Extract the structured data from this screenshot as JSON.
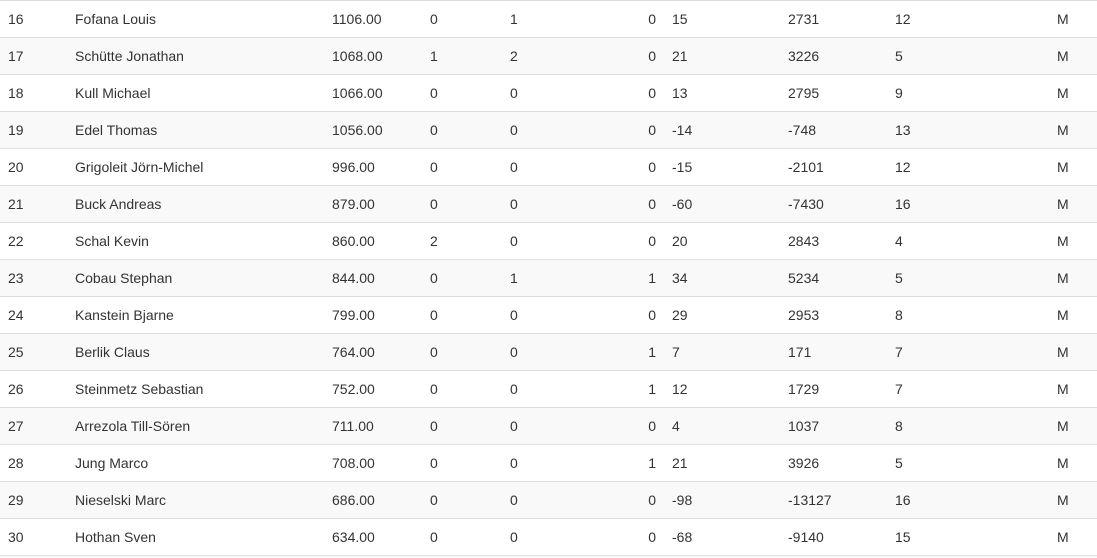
{
  "colors": {
    "background": "#ffffff",
    "stripe": "#f9f9f9",
    "row_border": "#dddddd",
    "text": "#333333"
  },
  "table": {
    "column_keys": [
      "rank",
      "player-name",
      "score",
      "col-4",
      "col-5",
      "col-6",
      "col-7",
      "col-8",
      "col-9",
      "gender"
    ],
    "rows": [
      [
        "16",
        "Fofana Louis",
        "1106.00",
        "0",
        "1",
        "0",
        "15",
        "2731",
        "12",
        "M"
      ],
      [
        "17",
        "Schütte Jonathan",
        "1068.00",
        "1",
        "2",
        "0",
        "21",
        "3226",
        "5",
        "M"
      ],
      [
        "18",
        "Kull Michael",
        "1066.00",
        "0",
        "0",
        "0",
        "13",
        "2795",
        "9",
        "M"
      ],
      [
        "19",
        "Edel Thomas",
        "1056.00",
        "0",
        "0",
        "0",
        "-14",
        "-748",
        "13",
        "M"
      ],
      [
        "20",
        "Grigoleit Jörn-Michel",
        "996.00",
        "0",
        "0",
        "0",
        "-15",
        "-2101",
        "12",
        "M"
      ],
      [
        "21",
        "Buck Andreas",
        "879.00",
        "0",
        "0",
        "0",
        "-60",
        "-7430",
        "16",
        "M"
      ],
      [
        "22",
        "Schal Kevin",
        "860.00",
        "2",
        "0",
        "0",
        "20",
        "2843",
        "4",
        "M"
      ],
      [
        "23",
        "Cobau Stephan",
        "844.00",
        "0",
        "1",
        "1",
        "34",
        "5234",
        "5",
        "M"
      ],
      [
        "24",
        "Kanstein Bjarne",
        "799.00",
        "0",
        "0",
        "0",
        "29",
        "2953",
        "8",
        "M"
      ],
      [
        "25",
        "Berlik Claus",
        "764.00",
        "0",
        "0",
        "1",
        "7",
        "171",
        "7",
        "M"
      ],
      [
        "26",
        "Steinmetz Sebastian",
        "752.00",
        "0",
        "0",
        "1",
        "12",
        "1729",
        "7",
        "M"
      ],
      [
        "27",
        "Arrezola Till-Sören",
        "711.00",
        "0",
        "0",
        "0",
        "4",
        "1037",
        "8",
        "M"
      ],
      [
        "28",
        "Jung Marco",
        "708.00",
        "0",
        "0",
        "1",
        "21",
        "3926",
        "5",
        "M"
      ],
      [
        "29",
        "Nieselski Marc",
        "686.00",
        "0",
        "0",
        "0",
        "-98",
        "-13127",
        "16",
        "M"
      ],
      [
        "30",
        "Hothan Sven",
        "634.00",
        "0",
        "0",
        "0",
        "-68",
        "-9140",
        "15",
        "M"
      ]
    ]
  }
}
